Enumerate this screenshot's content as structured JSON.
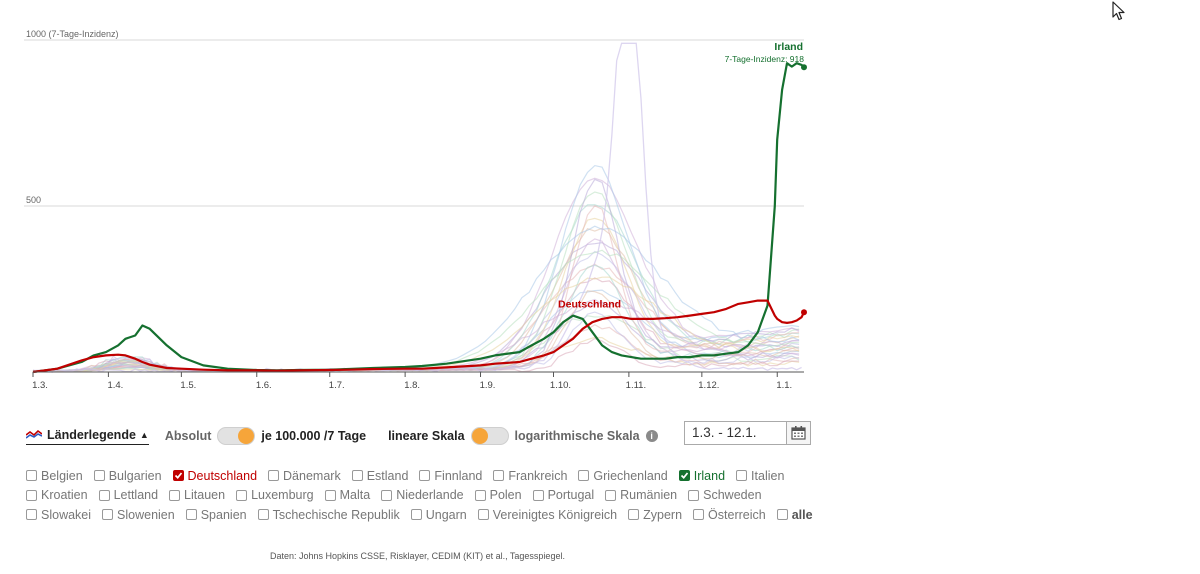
{
  "chart_data": {
    "type": "line",
    "ylim": [
      0,
      1000
    ],
    "ytick_values": [
      500,
      1000
    ],
    "ytick_labels": [
      "500",
      "1000 (7-Tage-Inzidenz)"
    ],
    "xlim_days": [
      0,
      317
    ],
    "xtick_labels": [
      "1.3.",
      "1.4.",
      "1.5.",
      "1.6.",
      "1.7.",
      "1.8.",
      "1.9.",
      "1.10.",
      "1.11.",
      "1.12.",
      "1.1."
    ],
    "xtick_days": [
      0,
      31,
      61,
      92,
      122,
      153,
      184,
      214,
      245,
      275,
      306
    ],
    "x_days": [
      0,
      10,
      20,
      25,
      30,
      35,
      38,
      42,
      45,
      48,
      55,
      61,
      70,
      80,
      92,
      100,
      110,
      122,
      130,
      140,
      153,
      160,
      170,
      184,
      190,
      200,
      205,
      210,
      214,
      218,
      222,
      226,
      230,
      234,
      238,
      242,
      246,
      250,
      255,
      260,
      265,
      270,
      275,
      280,
      285,
      290,
      294,
      298,
      302,
      305,
      306,
      308,
      310,
      312,
      314,
      316,
      317
    ],
    "series": [
      {
        "name": "Irland",
        "color": "#15702f",
        "values": [
          0,
          10,
          30,
          50,
          60,
          80,
          100,
          110,
          140,
          130,
          80,
          45,
          20,
          10,
          6,
          5,
          6,
          7,
          9,
          12,
          15,
          18,
          25,
          40,
          50,
          60,
          80,
          100,
          120,
          150,
          170,
          160,
          120,
          80,
          60,
          50,
          45,
          40,
          40,
          40,
          45,
          45,
          50,
          50,
          55,
          60,
          80,
          120,
          200,
          500,
          700,
          850,
          930,
          920,
          930,
          925,
          918
        ]
      },
      {
        "name": "Deutschland",
        "color": "#c00000",
        "values": [
          0,
          10,
          35,
          45,
          50,
          52,
          50,
          40,
          30,
          22,
          12,
          10,
          7,
          5,
          5,
          4,
          5,
          6,
          7,
          9,
          10,
          10,
          14,
          20,
          25,
          30,
          40,
          50,
          60,
          80,
          100,
          130,
          150,
          160,
          165,
          165,
          160,
          160,
          160,
          162,
          165,
          170,
          175,
          180,
          190,
          205,
          210,
          215,
          215,
          170,
          160,
          150,
          148,
          150,
          155,
          165,
          180
        ]
      }
    ],
    "annotations": [
      {
        "series": "Irland",
        "text": "Irland",
        "subtext": "7-Tage-Inzidenz: 918"
      },
      {
        "series": "Deutschland",
        "text": "Deutschland"
      }
    ]
  },
  "controls": {
    "legend_label": "Länderlegende",
    "absolut_label": "Absolut",
    "per100k_label": "je 100.000 /7 Tage",
    "linear_label": "lineare Skala",
    "log_label": "logarithmische Skala",
    "info_icon_text": "i",
    "date_range": "1.3. - 12.1.",
    "accent_color": "#f6a53a"
  },
  "countries": [
    [
      {
        "name": "Belgien",
        "checked": false
      },
      {
        "name": "Bulgarien",
        "checked": false
      },
      {
        "name": "Deutschland",
        "checked": true,
        "color": "#c00000"
      },
      {
        "name": "Dänemark",
        "checked": false
      },
      {
        "name": "Estland",
        "checked": false
      },
      {
        "name": "Finnland",
        "checked": false
      },
      {
        "name": "Frankreich",
        "checked": false
      },
      {
        "name": "Griechenland",
        "checked": false
      },
      {
        "name": "Irland",
        "checked": true,
        "color": "#15702f"
      },
      {
        "name": "Italien",
        "checked": false
      }
    ],
    [
      {
        "name": "Kroatien",
        "checked": false
      },
      {
        "name": "Lettland",
        "checked": false
      },
      {
        "name": "Litauen",
        "checked": false
      },
      {
        "name": "Luxemburg",
        "checked": false
      },
      {
        "name": "Malta",
        "checked": false
      },
      {
        "name": "Niederlande",
        "checked": false
      },
      {
        "name": "Polen",
        "checked": false
      },
      {
        "name": "Portugal",
        "checked": false
      },
      {
        "name": "Rumänien",
        "checked": false
      },
      {
        "name": "Schweden",
        "checked": false
      }
    ],
    [
      {
        "name": "Slowakei",
        "checked": false
      },
      {
        "name": "Slowenien",
        "checked": false
      },
      {
        "name": "Spanien",
        "checked": false
      },
      {
        "name": "Tschechische Republik",
        "checked": false
      },
      {
        "name": "Ungarn",
        "checked": false
      },
      {
        "name": "Vereinigtes Königreich",
        "checked": false
      },
      {
        "name": "Zypern",
        "checked": false
      },
      {
        "name": "Österreich",
        "checked": false
      },
      {
        "name": "alle",
        "checked": false,
        "bold": true
      }
    ]
  ],
  "source_text": "Daten: Johns Hopkins CSSE, Risklayer, CEDIM (KIT) et al., Tagesspiegel.",
  "icons": {
    "calendar": "calendar-icon",
    "cursor": "mouse-cursor-icon",
    "legend": "legend-lines-icon"
  }
}
